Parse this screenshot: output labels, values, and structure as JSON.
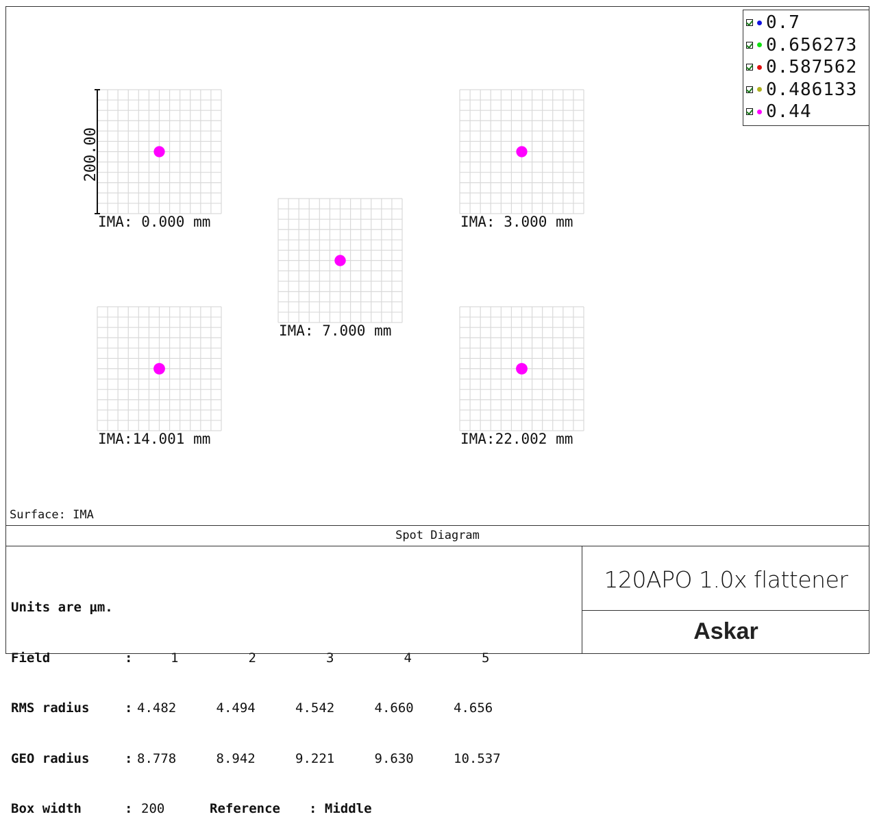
{
  "chart_data": {
    "type": "scatter",
    "title": "Spot Diagram",
    "surface_label": "Surface: IMA",
    "scale_bar_label": "200.00",
    "box_width": 200,
    "wavelengths": [
      {
        "label": "0.7",
        "color": "#1010e0"
      },
      {
        "label": "0.656273",
        "color": "#10e010"
      },
      {
        "label": "0.587562",
        "color": "#e01010"
      },
      {
        "label": "0.486133",
        "color": "#b0b020"
      },
      {
        "label": "0.44",
        "color": "#ff00ff"
      }
    ],
    "spots": [
      {
        "label": "IMA: 0.000 mm",
        "x": 0,
        "y": 0,
        "rms": 4.482
      },
      {
        "label": "IMA: 3.000 mm",
        "x": 0,
        "y": 0,
        "rms": 4.494
      },
      {
        "label": "IMA: 7.000 mm",
        "x": 0,
        "y": 0,
        "rms": 4.542
      },
      {
        "label": "IMA:14.001 mm",
        "x": 0,
        "y": 0,
        "rms": 4.66
      },
      {
        "label": "IMA:22.002 mm",
        "x": 0,
        "y": 0,
        "rms": 4.656
      }
    ]
  },
  "info": {
    "units_line": "Units are µm.",
    "field_label": "Field",
    "rms_label": "RMS radius",
    "geo_label": "GEO radius",
    "box_label": "Box width",
    "colon": ":",
    "fields": [
      "1",
      "2",
      "3",
      "4",
      "5"
    ],
    "rms_values": [
      "4.482",
      "4.494",
      "4.542",
      "4.660",
      "4.656"
    ],
    "geo_values": [
      "8.778",
      "8.942",
      "9.221",
      "9.630",
      "10.537"
    ],
    "box_width_value": "200",
    "reference_label": "Reference",
    "reference_value": ": Middle"
  },
  "lens_name": "120APO 1.0x flattener",
  "brand": "Askar"
}
